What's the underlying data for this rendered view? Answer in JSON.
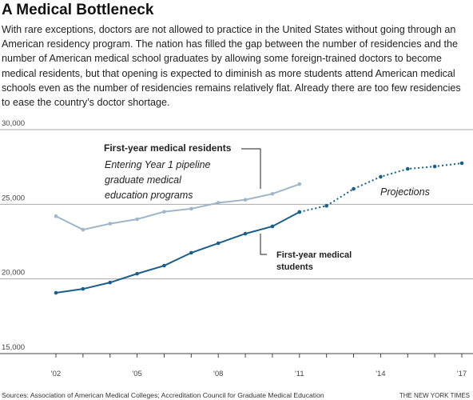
{
  "chart_data": {
    "type": "line",
    "title": "A Medical Bottleneck",
    "subtitle": "With rare exceptions, doctors are not allowed to practice in the United States without going through an American residency program. The nation has filled the gap between the number of residencies and the number of American medical school graduates by allowing some foreign-trained doctors to become medical residents, but that opening is expected to diminish as more students attend American medical schools even as the number of residencies remains relatively flat. Already there are too few residencies to ease the country’s doctor shortage.",
    "annotations": [
      "Entering Year 1 pipeline graduate medical education programs"
    ],
    "source": "Sources: Association of American Medical Colleges; Accreditation Council for Graduate Medical Education",
    "credit": "THE NEW YORK TIMES",
    "categories": [
      "'02",
      null,
      null,
      "'05",
      null,
      null,
      "'08",
      null,
      null,
      "'11",
      null,
      null,
      "'14",
      null,
      null,
      "'17"
    ],
    "series": [
      {
        "name": "First-year medical residents",
        "color": "#9fb6c8",
        "dashed": false,
        "values": [
          24200,
          23300,
          23700,
          24000,
          24500,
          24700,
          25100,
          25300,
          25700,
          26350,
          null,
          null,
          null,
          null,
          null,
          null
        ]
      },
      {
        "name": "First-year medical students",
        "color": "#1a5f8a",
        "dashed": false,
        "values": [
          19070,
          19330,
          19760,
          20350,
          20890,
          21750,
          22390,
          23030,
          23520,
          24480,
          null,
          null,
          null,
          null,
          null,
          null
        ]
      },
      {
        "name": "Projections",
        "color": "#1a5f8a",
        "dashed": true,
        "values": [
          null,
          null,
          null,
          null,
          null,
          null,
          null,
          null,
          null,
          24480,
          24900,
          26030,
          26840,
          27370,
          27530,
          27750
        ]
      }
    ],
    "ylim": [
      15000,
      30000
    ],
    "yticks": [
      {
        "value": 15000,
        "label": "15,000"
      },
      {
        "value": 20000,
        "label": "20,000"
      },
      {
        "value": 25000,
        "label": "25,000"
      },
      {
        "value": 30000,
        "label": "30,000"
      }
    ],
    "grid": true
  }
}
